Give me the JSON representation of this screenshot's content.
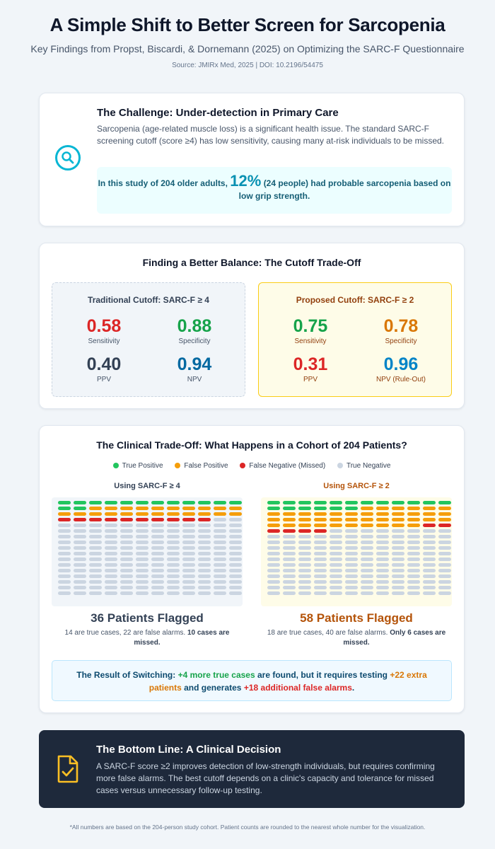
{
  "header": {
    "title": "A Simple Shift to Better Screen for Sarcopenia",
    "subtitle": "Key Findings from Propst, Biscardi, & Dornemann (2025) on Optimizing the SARC-F Questionnaire",
    "source": "Source: JMIRx Med, 2025 | DOI: 10.2196/54475"
  },
  "challenge": {
    "icon": "search-icon",
    "title": "The Challenge: Under-detection in Primary Care",
    "text": "Sarcopenia (age-related muscle loss) is a significant health issue. The standard SARC-F screening cutoff (score ≥4) has low sensitivity, causing many at-risk individuals to be missed.",
    "stat_prefix": "In this study of 204 older adults,",
    "stat_value": "12%",
    "stat_suffix": "(24 people) had probable sarcopenia based on low grip strength."
  },
  "balance": {
    "title": "Finding a Better Balance: The Cutoff Trade-Off",
    "traditional": {
      "title": "Traditional Cutoff: SARC-F ≥ 4",
      "metrics": [
        {
          "value": "0.58",
          "label": "Sensitivity",
          "color": "#dc2626"
        },
        {
          "value": "0.88",
          "label": "Specificity",
          "color": "#16a34a"
        },
        {
          "value": "0.40",
          "label": "PPV",
          "color": "#334155"
        },
        {
          "value": "0.94",
          "label": "NPV",
          "color": "#0369a1"
        }
      ]
    },
    "proposed": {
      "title": "Proposed Cutoff: SARC-F ≥ 2",
      "metrics": [
        {
          "value": "0.75",
          "label": "Sensitivity",
          "color": "#16a34a"
        },
        {
          "value": "0.78",
          "label": "Specificity",
          "color": "#d97706"
        },
        {
          "value": "0.31",
          "label": "PPV",
          "color": "#dc2626"
        },
        {
          "value": "0.96",
          "label": "NPV (Rule-Out)",
          "color": "#0284c7"
        }
      ]
    }
  },
  "tradeoff": {
    "title": "The Clinical Trade-Off: What Happens in a Cohort of 204 Patients?",
    "legend": [
      {
        "label": "True Positive",
        "color": "#22c55e"
      },
      {
        "label": "False Positive",
        "color": "#f59e0b"
      },
      {
        "label": "False Negative (Missed)",
        "color": "#dc2626"
      },
      {
        "label": "True Negative",
        "color": "#cbd5e1"
      }
    ],
    "grid_columns": 12,
    "grid_rows": 17,
    "left": {
      "title": "Using SARC-F ≥ 4",
      "title_color": "#334155",
      "counts": {
        "tp": 14,
        "fp": 22,
        "fn": 10
      },
      "flagged": "36 Patients Flagged",
      "flagged_color": "#334155",
      "desc_plain": "14 are true cases, 22 are false alarms.",
      "desc_bold": "10 cases are missed."
    },
    "right": {
      "title": "Using SARC-F ≥ 2",
      "title_color": "#b45309",
      "counts": {
        "tp": 18,
        "fp": 40,
        "fn": 6
      },
      "flagged": "58 Patients Flagged",
      "flagged_color": "#b45309",
      "desc_plain": "18 are true cases, 40 are false alarms.",
      "desc_bold": "Only 6 cases are missed."
    },
    "result": {
      "prefix": "The Result of Switching:",
      "part1": "+4 more true cases",
      "part2": "are found, but it requires testing",
      "part3": "+22 extra patients",
      "part4": "and generates",
      "part5": "+18 additional false alarms",
      "part6": "."
    }
  },
  "bottom": {
    "icon": "document-check-icon",
    "title": "The Bottom Line: A Clinical Decision",
    "text": "A SARC-F score ≥2 improves detection of low-strength individuals, but requires confirming more false alarms. The best cutoff depends on a clinic's capacity and tolerance for missed cases versus unnecessary follow-up testing."
  },
  "footnote": "*All numbers are based on the 204-person study cohort. Patient counts are rounded to the nearest whole number for the visualization."
}
